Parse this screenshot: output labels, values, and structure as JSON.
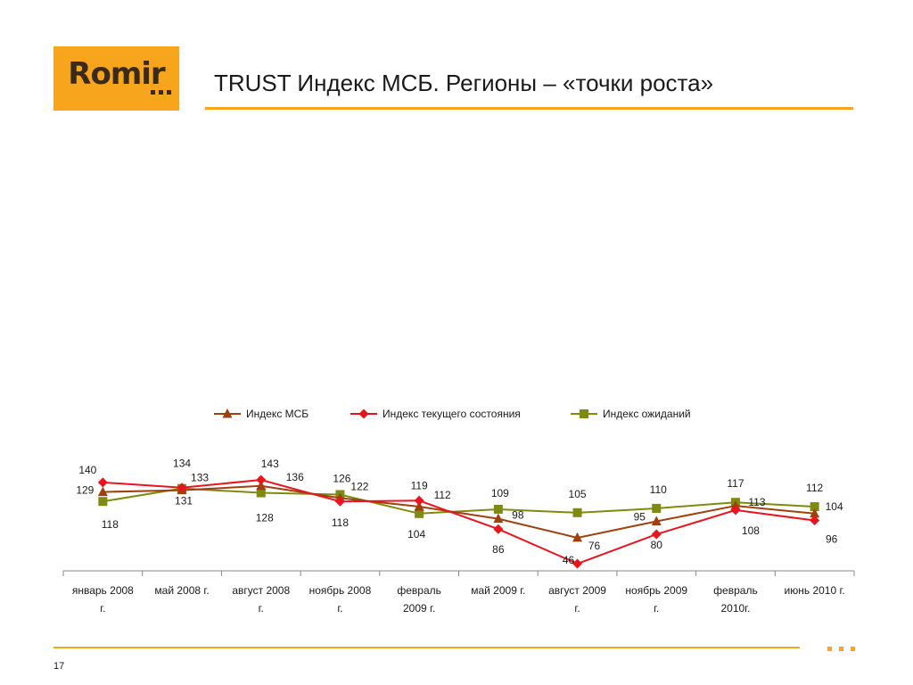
{
  "header": {
    "logo_text": "Romir",
    "title": "TRUST Индекс МСБ. Регионы – «точки роста»"
  },
  "footer": {
    "page_number": "17"
  },
  "colors": {
    "brand_orange": "#f7a51c",
    "series_msb": "#a0400f",
    "series_current": "#e8141e",
    "series_expect": "#7f8a10"
  },
  "icons": {
    "logo_dots": "three-square-dots-icon",
    "footer_dots": "three-square-dots-icon"
  },
  "chart_data": {
    "type": "line",
    "title": "",
    "xlabel": "",
    "ylabel": "",
    "ylim": [
      40,
      150
    ],
    "grid": false,
    "legend_position": "top",
    "categories": [
      [
        "январь 2008",
        "г."
      ],
      [
        "май 2008 г."
      ],
      [
        "август 2008",
        "г."
      ],
      [
        "ноябрь 2008",
        "г."
      ],
      [
        "февраль",
        "2009 г."
      ],
      [
        "май 2009 г."
      ],
      [
        "август 2009",
        "г."
      ],
      [
        "ноябрь 2009",
        "г."
      ],
      [
        "февраль",
        "2010г."
      ],
      [
        "июнь 2010 г."
      ]
    ],
    "series": [
      {
        "name": "Индекс МСБ",
        "marker": "triangle",
        "values": [
          129,
          131,
          136,
          122,
          112,
          98,
          76,
          95,
          113,
          104
        ]
      },
      {
        "name": "Индекс текущего состояния",
        "marker": "diamond",
        "values": [
          140,
          134,
          143,
          118,
          119,
          86,
          46,
          80,
          108,
          96
        ]
      },
      {
        "name": "Индекс ожиданий",
        "marker": "square",
        "values": [
          118,
          133,
          128,
          126,
          104,
          109,
          105,
          110,
          117,
          112
        ]
      }
    ]
  }
}
